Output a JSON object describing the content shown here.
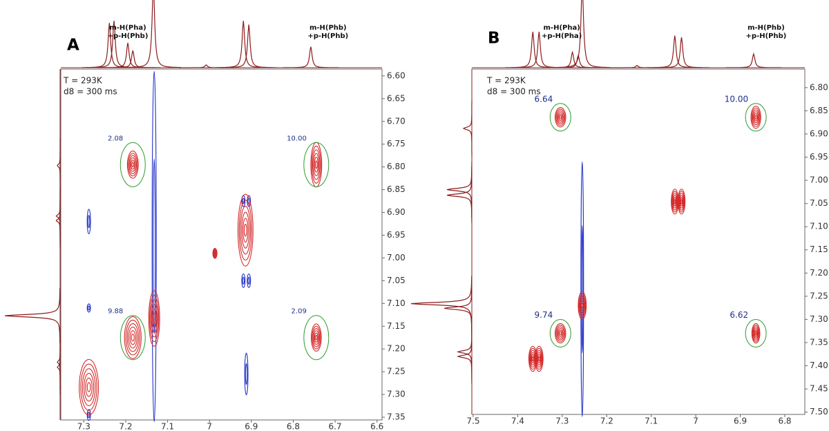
{
  "chart_data": [
    {
      "type": "nmr2d",
      "label": "A",
      "conditions": [
        "T = 293K",
        "d8 = 300 ms"
      ],
      "xlim": [
        7.355,
        6.588
      ],
      "xticks": [
        7.3,
        7.2,
        7.1,
        7.0,
        6.9,
        6.8,
        6.7,
        6.6
      ],
      "ylim": [
        6.585,
        7.356
      ],
      "yticks": [
        {
          "value": 6.6,
          "label": "6.60"
        },
        {
          "value": 6.65,
          "label": "6.65"
        },
        {
          "value": 6.7,
          "label": "6.70"
        },
        {
          "value": 6.75,
          "label": "6.75"
        },
        {
          "value": 6.8,
          "label": "6.80"
        },
        {
          "value": 6.85,
          "label": "6.85"
        },
        {
          "value": 6.9,
          "label": "6.90"
        },
        {
          "value": 6.95,
          "label": "6.95"
        },
        {
          "value": 7.0,
          "label": "7.00"
        },
        {
          "value": 7.05,
          "label": "7.05"
        },
        {
          "value": 7.1,
          "label": "7.10"
        },
        {
          "value": 7.15,
          "label": "7.15"
        },
        {
          "value": 7.2,
          "label": "7.20"
        },
        {
          "value": 7.25,
          "label": "7.25"
        },
        {
          "value": 7.3,
          "label": "7.30"
        },
        {
          "value": 7.35,
          "label": "7.35"
        }
      ],
      "projection_labels": [
        {
          "lines": [
            "m-H(Pha)",
            "+p-H(Phb)"
          ],
          "x": 7.195
        },
        {
          "lines": [
            "m-H(Phb)",
            "+p-H(Phb)"
          ],
          "x": 6.717
        }
      ],
      "trace_color": "#8b1a1a",
      "top_trace": {
        "x": [
          7.239,
          7.228,
          7.195,
          7.183,
          7.134,
          7.008,
          6.919,
          6.906,
          6.758
        ],
        "values": [
          0.81,
          0.85,
          0.45,
          0.31,
          1.5,
          0.05,
          0.85,
          0.78,
          0.38
        ]
      },
      "side_trace": {
        "y": [
          6.797,
          6.908,
          6.918,
          7.127,
          7.229,
          7.24
        ],
        "values": [
          0.05,
          0.07,
          0.07,
          1.0,
          0.05,
          0.05
        ]
      },
      "positive_peaks": {
        "color": "#d42a2a",
        "x": [
          7.183,
          6.745,
          7.183,
          6.745,
          7.288,
          7.132,
          6.914,
          6.987
        ],
        "y": [
          6.795,
          6.795,
          7.175,
          7.175,
          7.284,
          7.133,
          6.939,
          6.99
        ],
        "rx": [
          0.013,
          0.013,
          0.02,
          0.012,
          0.023,
          0.013,
          0.018,
          0.005
        ],
        "ry": [
          0.03,
          0.049,
          0.046,
          0.03,
          0.061,
          0.061,
          0.079,
          0.011
        ]
      },
      "negative_peaks": {
        "color": "#1f2fc8",
        "x": [
          7.132,
          7.288,
          7.288,
          7.288,
          6.919,
          6.906,
          6.919,
          6.906,
          6.912
        ],
        "y": [
          6.975,
          6.92,
          7.11,
          7.345,
          6.875,
          6.875,
          7.05,
          7.05,
          7.255
        ],
        "rx": [
          0.005,
          0.004,
          0.004,
          0.004,
          0.004,
          0.004,
          0.004,
          0.004,
          0.004
        ],
        "ry": [
          0.385,
          0.027,
          0.009,
          0.012,
          0.012,
          0.012,
          0.015,
          0.015,
          0.046
        ]
      },
      "integrals": {
        "circle_color": "#2e9a2e",
        "x": [
          7.183,
          6.745,
          7.183,
          6.745
        ],
        "y": [
          6.795,
          6.795,
          7.175,
          7.175
        ],
        "values": [
          2.08,
          10,
          9.88,
          2.09
        ],
        "value_labels": [
          "2.08",
          "10.00",
          "9.88",
          "2.09"
        ]
      }
    },
    {
      "type": "nmr2d",
      "label": "B",
      "conditions": [
        "T = 293K",
        "d8 = 300 ms"
      ],
      "xlim": [
        7.503,
        6.755
      ],
      "xticks": [
        7.5,
        7.4,
        7.3,
        7.2,
        7.1,
        7.0,
        6.9,
        6.8
      ],
      "ylim": [
        6.76,
        7.505
      ],
      "yticks": [
        {
          "value": 6.8,
          "label": "6.80"
        },
        {
          "value": 6.85,
          "label": "6.85"
        },
        {
          "value": 6.9,
          "label": "6.90"
        },
        {
          "value": 6.95,
          "label": "6.95"
        },
        {
          "value": 7.0,
          "label": "7.00"
        },
        {
          "value": 7.05,
          "label": "7.05"
        },
        {
          "value": 7.1,
          "label": "7.10"
        },
        {
          "value": 7.15,
          "label": "7.15"
        },
        {
          "value": 7.2,
          "label": "7.20"
        },
        {
          "value": 7.25,
          "label": "7.25"
        },
        {
          "value": 7.3,
          "label": "7.30"
        },
        {
          "value": 7.35,
          "label": "7.35"
        },
        {
          "value": 7.4,
          "label": "7.40"
        },
        {
          "value": 7.45,
          "label": "7.45"
        },
        {
          "value": 7.5,
          "label": "7.50"
        }
      ],
      "projection_labels": [
        {
          "lines": [
            "m-H(Pha)",
            "+p-H(Pha)"
          ],
          "x": 7.301
        },
        {
          "lines": [
            "m-H(Phb)",
            "+p-H(Phb)"
          ],
          "x": 6.842
        }
      ],
      "trace_color": "#8b1a1a",
      "top_trace": {
        "x": [
          7.366,
          7.352,
          7.277,
          7.264,
          7.255,
          7.132,
          7.047,
          7.032,
          6.87
        ],
        "values": [
          0.65,
          0.65,
          0.28,
          0.22,
          1.5,
          0.04,
          0.58,
          0.55,
          0.25
        ]
      },
      "side_trace": {
        "y": [
          6.888,
          7.02,
          7.032,
          7.266,
          7.276,
          7.37,
          7.38
        ],
        "values": [
          0.15,
          0.45,
          0.45,
          1.1,
          0.5,
          0.25,
          0.25
        ]
      },
      "positive_peaks": {
        "color": "#d42a2a",
        "x": [
          7.304,
          6.865,
          7.304,
          6.865,
          7.366,
          7.352,
          7.047,
          7.032,
          7.255
        ],
        "y": [
          6.864,
          6.864,
          7.33,
          7.33,
          7.385,
          7.385,
          7.046,
          7.046,
          7.27
        ],
        "rx": [
          0.012,
          0.011,
          0.012,
          0.009,
          0.009,
          0.009,
          0.008,
          0.008,
          0.009
        ],
        "ry": [
          0.021,
          0.024,
          0.021,
          0.021,
          0.027,
          0.027,
          0.027,
          0.027,
          0.03
        ]
      },
      "negative_peaks": {
        "color": "#1f2fc8",
        "x": [
          7.255
        ],
        "y": [
          7.235
        ],
        "rx": [
          0.003
        ],
        "ry": [
          0.275
        ]
      },
      "integrals": {
        "circle_color": "#2e9a2e",
        "x": [
          7.304,
          6.865,
          7.304,
          6.865
        ],
        "y": [
          6.864,
          6.864,
          7.33,
          7.33
        ],
        "values": [
          6.64,
          10,
          9.74,
          6.62
        ],
        "value_labels": [
          "6.64",
          "10.00",
          "9.74",
          "6.62"
        ]
      }
    }
  ]
}
